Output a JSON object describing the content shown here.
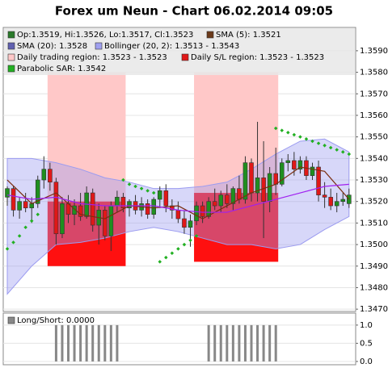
{
  "chart_data": {
    "type": "candlestick",
    "title": "Forex um Neun - Chart 06.02.2014 09:05",
    "legend": [
      "Op:1.3519, Hi:1.3526, Lo:1.3517, Cl:1.3523",
      "SMA (5): 1.3521",
      "SMA (20): 1.3528",
      "Bollinger (20, 2): 1.3513 - 1.3543",
      "Daily trading region: 1.3523 - 1.3523",
      "Daily S/L region: 1.3523 - 1.3523",
      "Parabolic SAR: 1.3542"
    ],
    "ylim": [
      1.34693,
      1.35997
    ],
    "yticks": [
      {
        "value": 1.347,
        "label": "1.3470"
      },
      {
        "value": 1.348,
        "label": "1.3480"
      },
      {
        "value": 1.349,
        "label": "1.3490"
      },
      {
        "value": 1.35,
        "label": "1.3500"
      },
      {
        "value": 1.351,
        "label": "1.3510"
      },
      {
        "value": 1.352,
        "label": "1.3520"
      },
      {
        "value": 1.353,
        "label": "1.3530"
      },
      {
        "value": 1.354,
        "label": "1.3540"
      },
      {
        "value": 1.355,
        "label": "1.3550"
      },
      {
        "value": 1.356,
        "label": "1.3560"
      },
      {
        "value": 1.357,
        "label": "1.3570"
      },
      {
        "value": 1.358,
        "label": "1.3580"
      },
      {
        "value": 1.359,
        "label": "1.3590"
      }
    ],
    "grid": true,
    "up_color": "#1f8f1f",
    "down_color": "#e01818",
    "open": [
      1.3522,
      1.3526,
      1.3516,
      1.352,
      1.3517,
      1.3519,
      1.353,
      1.3535,
      1.3529,
      1.3505,
      1.3519,
      1.3514,
      1.3518,
      1.3513,
      1.3524,
      1.3509,
      1.3516,
      1.3504,
      1.3518,
      1.3522,
      1.3517,
      1.352,
      1.3516,
      1.3519,
      1.3514,
      1.3521,
      1.3525,
      1.3518,
      1.3516,
      1.3512,
      1.3508,
      1.3511,
      1.3518,
      1.3513,
      1.352,
      1.3518,
      1.3523,
      1.3519,
      1.3526,
      1.3521,
      1.3538,
      1.3524,
      1.3531,
      1.352,
      1.3533,
      1.3528,
      1.3538,
      1.3539,
      1.3535,
      1.3539,
      1.3532,
      1.3536,
      1.3523,
      1.3522,
      1.3518,
      1.352,
      1.3519
    ],
    "high": [
      1.3527,
      1.3527,
      1.3522,
      1.3524,
      1.3522,
      1.3532,
      1.3541,
      1.3538,
      1.3531,
      1.3522,
      1.3523,
      1.3521,
      1.3524,
      1.3527,
      1.3526,
      1.3519,
      1.3518,
      1.352,
      1.3525,
      1.3524,
      1.3521,
      1.3523,
      1.3522,
      1.3521,
      1.3522,
      1.3527,
      1.3528,
      1.3521,
      1.352,
      1.3516,
      1.3514,
      1.352,
      1.352,
      1.3522,
      1.3526,
      1.3525,
      1.3528,
      1.3527,
      1.3532,
      1.3541,
      1.354,
      1.3557,
      1.3548,
      1.3536,
      1.3545,
      1.354,
      1.3542,
      1.3543,
      1.3541,
      1.3541,
      1.3538,
      1.3539,
      1.3529,
      1.3526,
      1.3524,
      1.3524,
      1.3526
    ],
    "low": [
      1.3518,
      1.3513,
      1.3512,
      1.3515,
      1.351,
      1.3517,
      1.3526,
      1.3525,
      1.35,
      1.3503,
      1.351,
      1.3509,
      1.3511,
      1.3512,
      1.3506,
      1.35,
      1.3502,
      1.3497,
      1.3515,
      1.3515,
      1.3513,
      1.3514,
      1.3513,
      1.3512,
      1.3512,
      1.3517,
      1.3515,
      1.3512,
      1.351,
      1.3505,
      1.3499,
      1.3509,
      1.351,
      1.3512,
      1.3516,
      1.3515,
      1.3517,
      1.3516,
      1.3519,
      1.3519,
      1.352,
      1.352,
      1.3503,
      1.3515,
      1.3523,
      1.3527,
      1.3534,
      1.3532,
      1.3533,
      1.353,
      1.353,
      1.352,
      1.3517,
      1.3516,
      1.3515,
      1.3518,
      1.3517
    ],
    "close": [
      1.3526,
      1.3516,
      1.352,
      1.3517,
      1.3519,
      1.353,
      1.3535,
      1.3529,
      1.3505,
      1.3519,
      1.3514,
      1.3518,
      1.3513,
      1.3524,
      1.3509,
      1.3516,
      1.3504,
      1.3518,
      1.3522,
      1.3517,
      1.352,
      1.3516,
      1.3519,
      1.3514,
      1.3521,
      1.3525,
      1.3518,
      1.3516,
      1.3512,
      1.3508,
      1.3511,
      1.3518,
      1.3513,
      1.352,
      1.3518,
      1.3523,
      1.3519,
      1.3526,
      1.3521,
      1.3538,
      1.3524,
      1.3531,
      1.352,
      1.3533,
      1.3528,
      1.3538,
      1.3539,
      1.3535,
      1.3539,
      1.3532,
      1.3536,
      1.3523,
      1.3522,
      1.3518,
      1.352,
      1.3521,
      1.3523
    ],
    "lines": [
      {
        "name": "SMA (5)",
        "color": "#7a2e10",
        "x": [
          0,
          4,
          8,
          12,
          16,
          20,
          24,
          28,
          32,
          36,
          40,
          44,
          48,
          52,
          56
        ],
        "values": [
          1.353,
          1.3519,
          1.3524,
          1.3514,
          1.3512,
          1.3518,
          1.3517,
          1.3518,
          1.3512,
          1.3518,
          1.3524,
          1.3528,
          1.3536,
          1.3534,
          1.3521
        ]
      },
      {
        "name": "SMA (20)",
        "color": "#a020f0",
        "x": [
          0,
          4,
          8,
          12,
          16,
          20,
          24,
          28,
          32,
          36,
          40,
          44,
          48,
          52,
          56
        ],
        "values": [
          1.3523,
          1.3521,
          1.3522,
          1.3519,
          1.3518,
          1.3518,
          1.3518,
          1.3516,
          1.3515,
          1.3515,
          1.3518,
          1.3521,
          1.3524,
          1.3527,
          1.3528
        ]
      }
    ],
    "band": {
      "color": "#9b9bf0",
      "x": [
        0,
        4,
        8,
        12,
        16,
        20,
        24,
        28,
        32,
        36,
        40,
        44,
        48,
        52,
        56
      ],
      "upper": [
        1.354,
        1.354,
        1.3538,
        1.3535,
        1.3531,
        1.3529,
        1.3526,
        1.3526,
        1.3527,
        1.3529,
        1.3535,
        1.3542,
        1.3548,
        1.3549,
        1.3543
      ],
      "lower": [
        1.3477,
        1.349,
        1.35,
        1.3501,
        1.3503,
        1.3506,
        1.3508,
        1.3506,
        1.3503,
        1.35,
        1.35,
        1.3498,
        1.35,
        1.3507,
        1.3513
      ]
    },
    "sar": {
      "color": "#22b022",
      "x": [
        0,
        1,
        2,
        3,
        4,
        5,
        19,
        20,
        21,
        22,
        23,
        24,
        25,
        26,
        27,
        28,
        29,
        30,
        31,
        44,
        45,
        46,
        47,
        48,
        49,
        50,
        51,
        52,
        53,
        54,
        55,
        56
      ],
      "values": [
        1.3498,
        1.3501,
        1.3504,
        1.3508,
        1.3511,
        1.3514,
        1.353,
        1.3528,
        1.3527,
        1.3526,
        1.3525,
        1.3524,
        1.3492,
        1.3494,
        1.3496,
        1.3498,
        1.35,
        1.3502,
        1.3504,
        1.3554,
        1.3553,
        1.3552,
        1.3551,
        1.355,
        1.3549,
        1.3548,
        1.3547,
        1.3546,
        1.3545,
        1.3544,
        1.3543,
        1.3542
      ]
    },
    "regions": [
      {
        "start": 7,
        "end": 19,
        "trading": [
          1.352,
          1.358
        ],
        "sl": [
          1.349,
          1.352
        ]
      },
      {
        "start": 31,
        "end": 44,
        "trading": [
          1.3524,
          1.358
        ],
        "sl": [
          1.3492,
          1.3524
        ]
      }
    ],
    "trading_color": "#ffc8c8",
    "sl_color": "#ff1010",
    "indicator": {
      "label": "Long/Short: 0.0000",
      "color": "#888888",
      "ylim": [
        -0.09,
        1.33
      ],
      "yticks": [
        {
          "value": 0,
          "label": "0.0"
        },
        {
          "value": 0.5,
          "label": "0.5"
        },
        {
          "value": 1,
          "label": "1.0"
        }
      ],
      "values": [
        0,
        0,
        0,
        0,
        0,
        0,
        0,
        0,
        1,
        1,
        1,
        1,
        1,
        1,
        1,
        1,
        1,
        1,
        1,
        0,
        0,
        0,
        0,
        0,
        0,
        0,
        0,
        0,
        0,
        0,
        0,
        0,
        0,
        1,
        1,
        1,
        1,
        1,
        1,
        1,
        1,
        1,
        1,
        1,
        1,
        0,
        0,
        0,
        0,
        0,
        0,
        0,
        0,
        0,
        0,
        0,
        0
      ]
    }
  }
}
